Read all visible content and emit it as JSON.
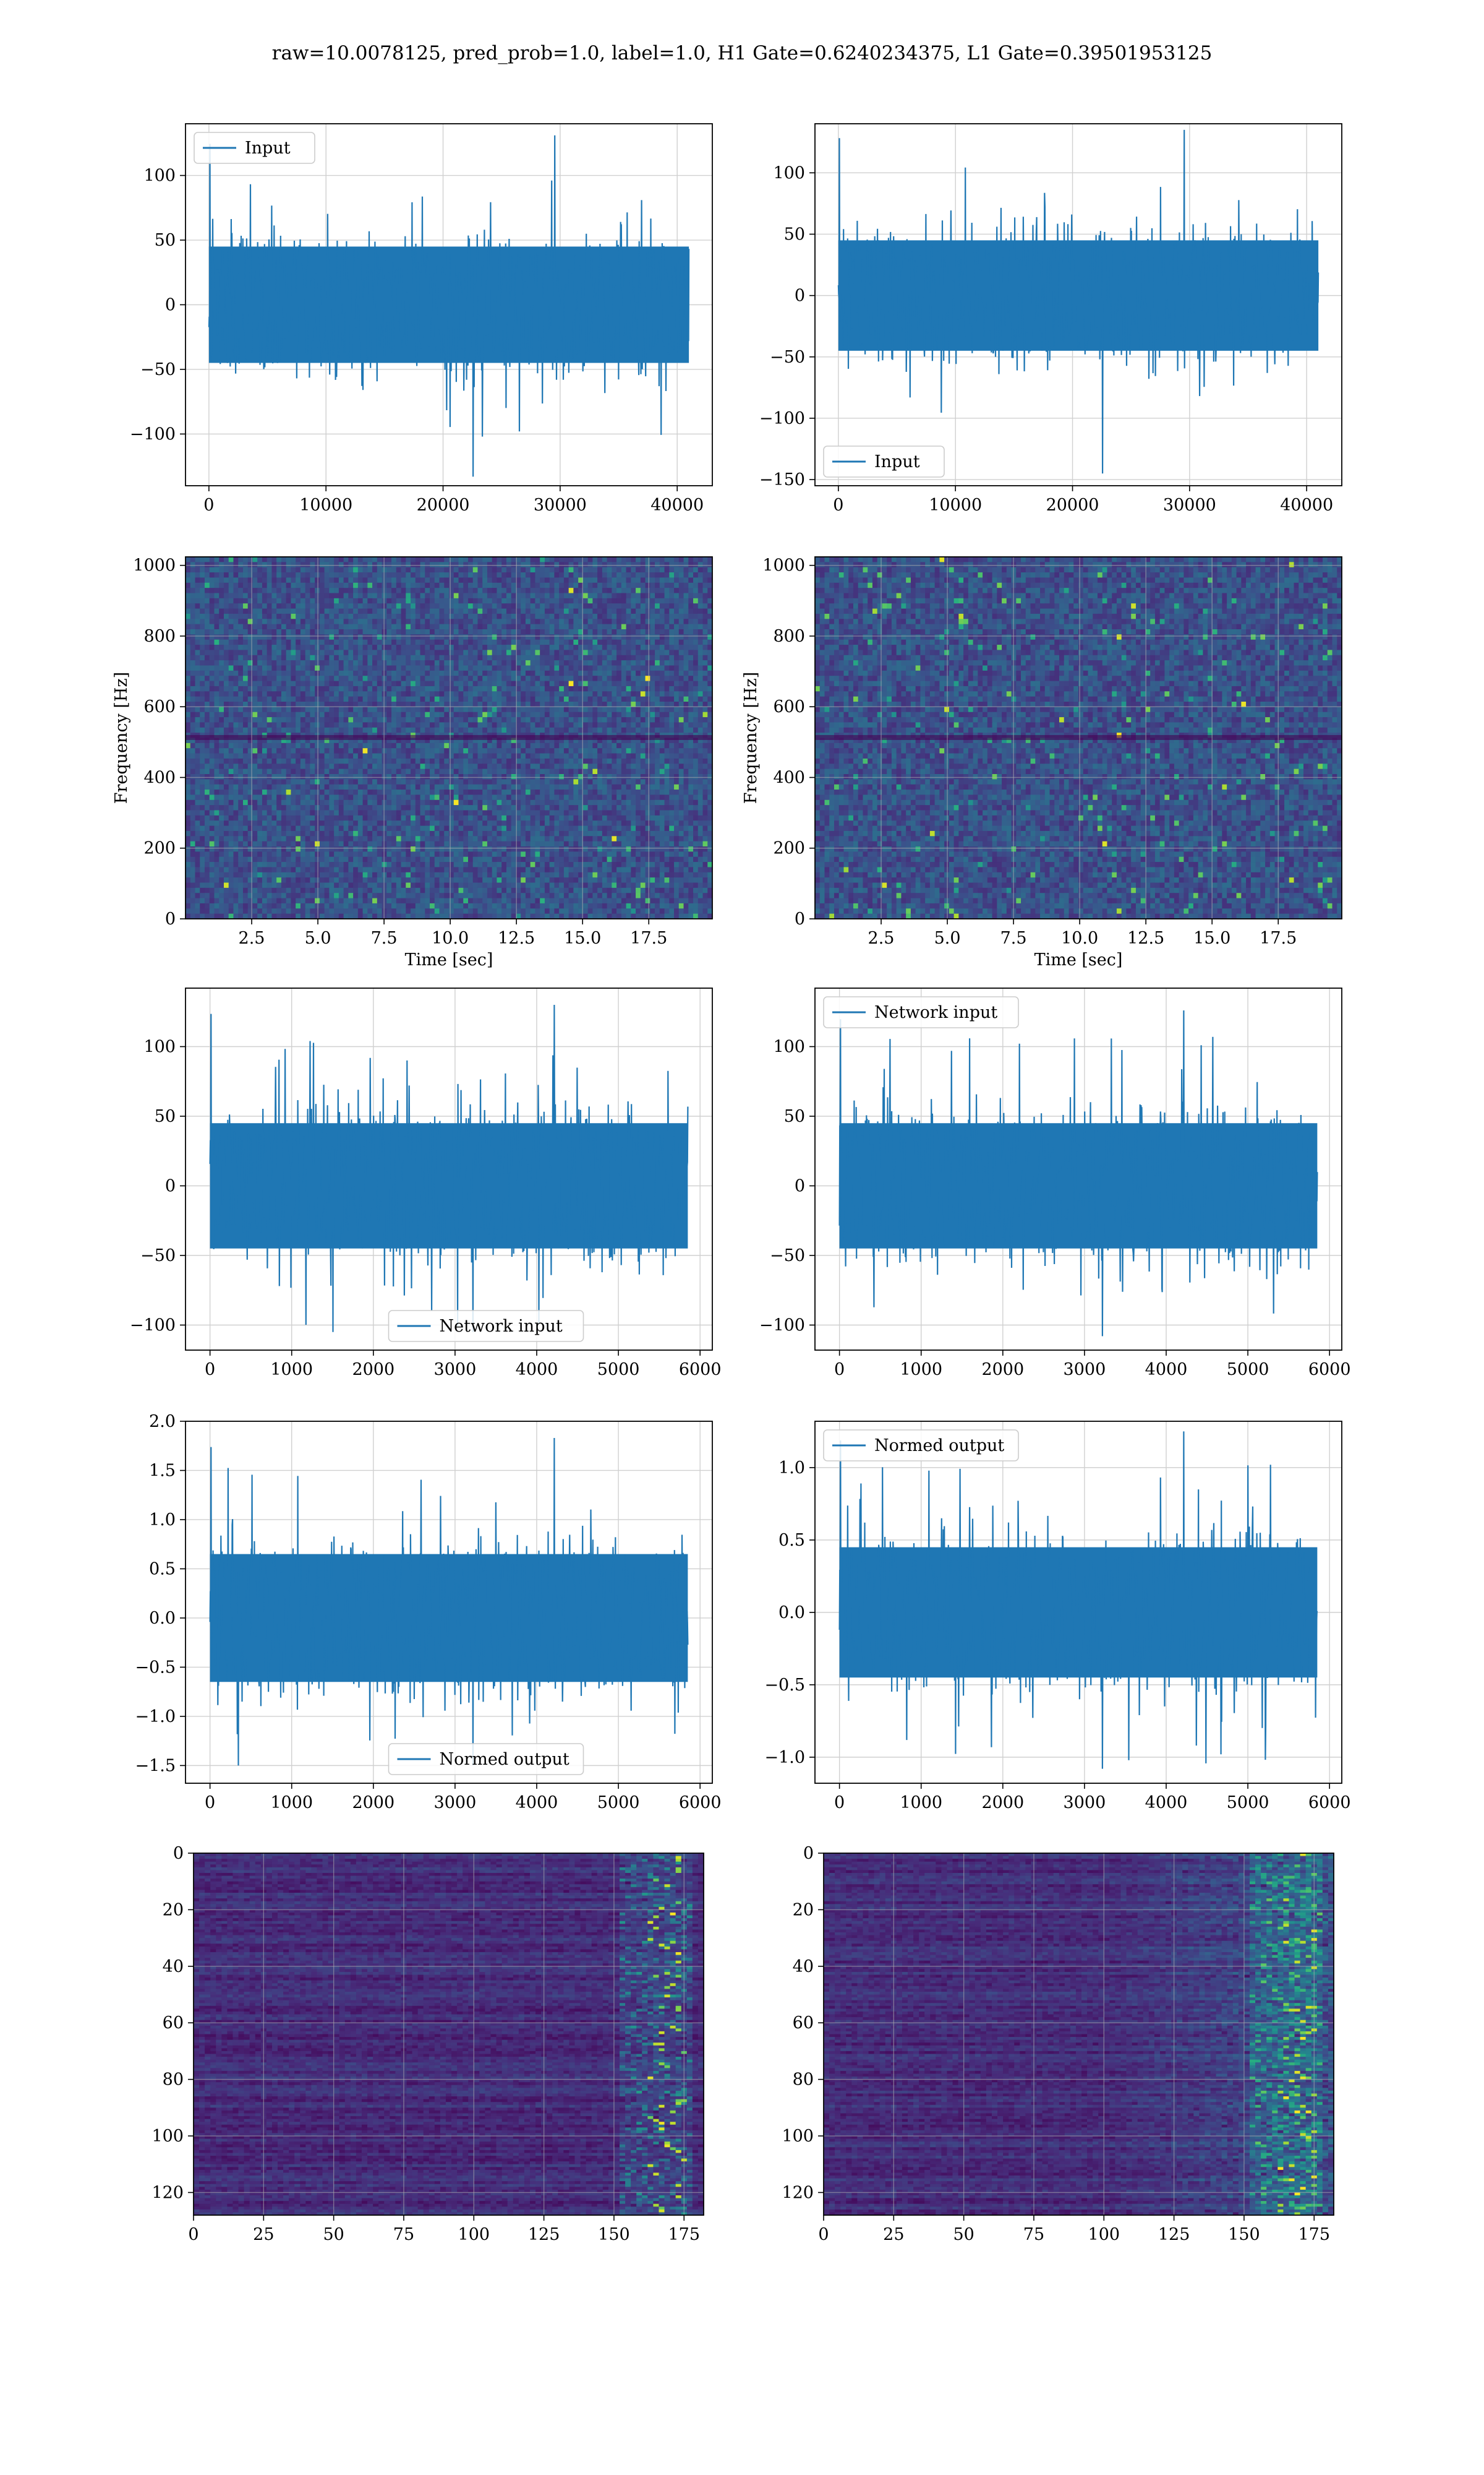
{
  "suptitle": "raw=10.0078125, pred_prob=1.0, label=1.0, H1 Gate=0.6240234375, L1 Gate=0.39501953125",
  "colors": {
    "line": "#1f77b4",
    "grid": "#d0d0d0",
    "viridis_low": "#440154",
    "viridis_mid": "#21918c",
    "viridis_high": "#fde725"
  },
  "chart_data": [
    {
      "id": "h1-input",
      "type": "line",
      "legend": "Input",
      "legend_loc": "upper left",
      "xlim": [
        -2000,
        43000
      ],
      "ylim": [
        -140,
        140
      ],
      "xticks": [
        0,
        10000,
        20000,
        30000,
        40000
      ],
      "xtick_labels": [
        "0",
        "10000",
        "20000",
        "30000",
        "40000"
      ],
      "yticks": [
        -100,
        -50,
        0,
        50,
        100
      ],
      "ytick_labels": [
        "−100",
        "−50",
        "0",
        "50",
        "100"
      ],
      "x_range": [
        0,
        41000
      ],
      "band": 45,
      "spike_max": 131,
      "spike_min": -133,
      "grid": true
    },
    {
      "id": "l1-input",
      "type": "line",
      "legend": "Input",
      "legend_loc": "lower left",
      "xlim": [
        -2000,
        43000
      ],
      "ylim": [
        -155,
        140
      ],
      "xticks": [
        0,
        10000,
        20000,
        30000,
        40000
      ],
      "xtick_labels": [
        "0",
        "10000",
        "20000",
        "30000",
        "40000"
      ],
      "yticks": [
        -150,
        -100,
        -50,
        0,
        50,
        100
      ],
      "ytick_labels": [
        "−150",
        "−100",
        "−50",
        "0",
        "50",
        "100"
      ],
      "x_range": [
        0,
        41000
      ],
      "band": 45,
      "spike_max": 135,
      "spike_min": -145,
      "grid": true
    },
    {
      "id": "h1-spectrogram",
      "type": "heatmap",
      "xlabel": "Time [sec]",
      "ylabel": "Frequency [Hz]",
      "xlim": [
        0,
        19.9
      ],
      "ylim": [
        0,
        1024
      ],
      "xticks": [
        2.5,
        5.0,
        7.5,
        10.0,
        12.5,
        15.0,
        17.5
      ],
      "xtick_labels": [
        "2.5",
        "5.0",
        "7.5",
        "10.0",
        "12.5",
        "15.0",
        "17.5"
      ],
      "yticks": [
        0,
        200,
        400,
        600,
        800,
        1000
      ],
      "ytick_labels": [
        "0",
        "200",
        "400",
        "600",
        "800",
        "1000"
      ],
      "colormap": "viridis",
      "grid": true
    },
    {
      "id": "l1-spectrogram",
      "type": "heatmap",
      "xlabel": "Time [sec]",
      "ylabel": "Frequency [Hz]",
      "xlim": [
        0,
        19.9
      ],
      "ylim": [
        0,
        1024
      ],
      "xticks": [
        2.5,
        5.0,
        7.5,
        10.0,
        12.5,
        15.0,
        17.5
      ],
      "xtick_labels": [
        "2.5",
        "5.0",
        "7.5",
        "10.0",
        "12.5",
        "15.0",
        "17.5"
      ],
      "yticks": [
        0,
        200,
        400,
        600,
        800,
        1000
      ],
      "ytick_labels": [
        "0",
        "200",
        "400",
        "600",
        "800",
        "1000"
      ],
      "colormap": "viridis",
      "grid": true
    },
    {
      "id": "h1-network-input",
      "type": "line",
      "legend": "Network input",
      "legend_loc": "lower center",
      "xlim": [
        -300,
        6150
      ],
      "ylim": [
        -118,
        142
      ],
      "xticks": [
        0,
        1000,
        2000,
        3000,
        4000,
        5000,
        6000
      ],
      "xtick_labels": [
        "0",
        "1000",
        "2000",
        "3000",
        "4000",
        "5000",
        "6000"
      ],
      "yticks": [
        -100,
        -50,
        0,
        50,
        100
      ],
      "ytick_labels": [
        "−100",
        "−50",
        "0",
        "50",
        "100"
      ],
      "x_range": [
        0,
        5850
      ],
      "band": 45,
      "spike_max": 130,
      "spike_min": -105,
      "grid": true
    },
    {
      "id": "l1-network-input",
      "type": "line",
      "legend": "Network input",
      "legend_loc": "upper left",
      "xlim": [
        -300,
        6150
      ],
      "ylim": [
        -118,
        142
      ],
      "xticks": [
        0,
        1000,
        2000,
        3000,
        4000,
        5000,
        6000
      ],
      "xtick_labels": [
        "0",
        "1000",
        "2000",
        "3000",
        "4000",
        "5000",
        "6000"
      ],
      "yticks": [
        -100,
        -50,
        0,
        50,
        100
      ],
      "ytick_labels": [
        "−100",
        "−50",
        "0",
        "50",
        "100"
      ],
      "x_range": [
        0,
        5850
      ],
      "band": 45,
      "spike_max": 126,
      "spike_min": -108,
      "grid": true
    },
    {
      "id": "h1-normed-output",
      "type": "line",
      "legend": "Normed output",
      "legend_loc": "lower center",
      "xlim": [
        -300,
        6150
      ],
      "ylim": [
        -1.68,
        2.0
      ],
      "xticks": [
        0,
        1000,
        2000,
        3000,
        4000,
        5000,
        6000
      ],
      "xtick_labels": [
        "0",
        "1000",
        "2000",
        "3000",
        "4000",
        "5000",
        "6000"
      ],
      "yticks": [
        -1.5,
        -1.0,
        -0.5,
        0.0,
        0.5,
        1.0,
        1.5,
        2.0
      ],
      "ytick_labels": [
        "−1.5",
        "−1.0",
        "−0.5",
        "0.0",
        "0.5",
        "1.0",
        "1.5",
        "2.0"
      ],
      "x_range": [
        0,
        5850
      ],
      "band": 0.65,
      "spike_max": 1.83,
      "spike_min": -1.5,
      "grid": true
    },
    {
      "id": "l1-normed-output",
      "type": "line",
      "legend": "Normed output",
      "legend_loc": "upper left",
      "xlim": [
        -300,
        6150
      ],
      "ylim": [
        -1.18,
        1.32
      ],
      "xticks": [
        0,
        1000,
        2000,
        3000,
        4000,
        5000,
        6000
      ],
      "xtick_labels": [
        "0",
        "1000",
        "2000",
        "3000",
        "4000",
        "5000",
        "6000"
      ],
      "yticks": [
        -1.0,
        -0.5,
        0.0,
        0.5,
        1.0
      ],
      "ytick_labels": [
        "−1.0",
        "−0.5",
        "0.0",
        "0.5",
        "1.0"
      ],
      "x_range": [
        0,
        5850
      ],
      "band": 0.45,
      "spike_max": 1.25,
      "spike_min": -1.08,
      "grid": true
    },
    {
      "id": "h1-feature-map",
      "type": "heatmap",
      "xlim": [
        0,
        182
      ],
      "ylim": [
        128,
        0
      ],
      "xticks": [
        0,
        25,
        50,
        75,
        100,
        125,
        150,
        175
      ],
      "xtick_labels": [
        "0",
        "25",
        "50",
        "75",
        "100",
        "125",
        "150",
        "175"
      ],
      "yticks": [
        0,
        20,
        40,
        60,
        80,
        100,
        120
      ],
      "ytick_labels": [
        "0",
        "20",
        "40",
        "60",
        "80",
        "100",
        "120"
      ],
      "colormap": "viridis",
      "grid": true
    },
    {
      "id": "l1-feature-map",
      "type": "heatmap",
      "xlim": [
        0,
        182
      ],
      "ylim": [
        128,
        0
      ],
      "xticks": [
        0,
        25,
        50,
        75,
        100,
        125,
        150,
        175
      ],
      "xtick_labels": [
        "0",
        "25",
        "50",
        "75",
        "100",
        "125",
        "150",
        "175"
      ],
      "yticks": [
        0,
        20,
        40,
        60,
        80,
        100,
        120
      ],
      "ytick_labels": [
        "0",
        "20",
        "40",
        "60",
        "80",
        "100",
        "120"
      ],
      "colormap": "viridis",
      "grid": true
    }
  ]
}
